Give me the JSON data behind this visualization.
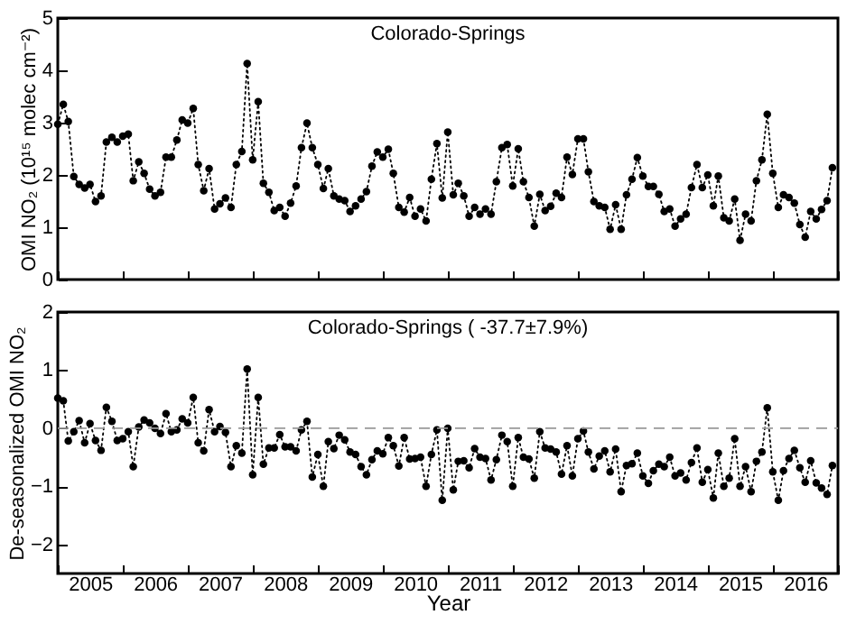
{
  "chart_data": [
    {
      "type": "line",
      "title": "Colorado-Springs",
      "ylabel": "OMI NO₂ (10¹⁵ molec cm⁻²)",
      "marker": "circle",
      "line_style": "dotted",
      "grid": false,
      "tick_labels": "y",
      "x": [
        "2005-01",
        "2005-02",
        "2005-03",
        "2005-04",
        "2005-05",
        "2005-06",
        "2005-07",
        "2005-08",
        "2005-09",
        "2005-10",
        "2005-11",
        "2005-12",
        "2006-01",
        "2006-02",
        "2006-03",
        "2006-04",
        "2006-05",
        "2006-06",
        "2006-07",
        "2006-08",
        "2006-09",
        "2006-10",
        "2006-11",
        "2006-12",
        "2007-01",
        "2007-02",
        "2007-03",
        "2007-04",
        "2007-05",
        "2007-06",
        "2007-07",
        "2007-08",
        "2007-09",
        "2007-10",
        "2007-11",
        "2007-12",
        "2008-01",
        "2008-02",
        "2008-03",
        "2008-04",
        "2008-05",
        "2008-06",
        "2008-07",
        "2008-08",
        "2008-09",
        "2008-10",
        "2008-11",
        "2008-12",
        "2009-01",
        "2009-02",
        "2009-03",
        "2009-04",
        "2009-05",
        "2009-06",
        "2009-07",
        "2009-08",
        "2009-09",
        "2009-10",
        "2009-11",
        "2009-12",
        "2010-01",
        "2010-02",
        "2010-03",
        "2010-04",
        "2010-05",
        "2010-06",
        "2010-07",
        "2010-08",
        "2010-09",
        "2010-10",
        "2010-11",
        "2010-12",
        "2011-01",
        "2011-02",
        "2011-03",
        "2011-04",
        "2011-05",
        "2011-06",
        "2011-07",
        "2011-08",
        "2011-09",
        "2011-10",
        "2011-11",
        "2011-12",
        "2012-01",
        "2012-02",
        "2012-03",
        "2012-04",
        "2012-05",
        "2012-06",
        "2012-07",
        "2012-08",
        "2012-09",
        "2012-10",
        "2012-11",
        "2012-12",
        "2013-01",
        "2013-02",
        "2013-03",
        "2013-04",
        "2013-05",
        "2013-06",
        "2013-07",
        "2013-08",
        "2013-09",
        "2013-10",
        "2013-11",
        "2013-12",
        "2014-01",
        "2014-02",
        "2014-03",
        "2014-04",
        "2014-05",
        "2014-06",
        "2014-07",
        "2014-08",
        "2014-09",
        "2014-10",
        "2014-11",
        "2014-12",
        "2015-01",
        "2015-02",
        "2015-03",
        "2015-04",
        "2015-05",
        "2015-06",
        "2015-07",
        "2015-08",
        "2015-09",
        "2015-10",
        "2015-11",
        "2015-12",
        "2016-01",
        "2016-02",
        "2016-03",
        "2016-04",
        "2016-05",
        "2016-06",
        "2016-07",
        "2016-08",
        "2016-09",
        "2016-10",
        "2016-11",
        "2016-12"
      ],
      "series": [
        {
          "color": "#000000",
          "values": [
            2.97,
            3.35,
            3.02,
            1.97,
            1.82,
            1.75,
            1.82,
            1.49,
            1.6,
            2.63,
            2.72,
            2.63,
            2.74,
            2.78,
            1.89,
            2.25,
            2.03,
            1.73,
            1.6,
            1.67,
            2.34,
            2.34,
            2.67,
            3.05,
            2.99,
            3.27,
            2.2,
            1.7,
            2.12,
            1.35,
            1.45,
            1.56,
            1.38,
            2.2,
            2.45,
            4.13,
            2.29,
            3.4,
            1.84,
            1.67,
            1.32,
            1.38,
            1.21,
            1.46,
            1.79,
            2.52,
            2.99,
            2.52,
            2.2,
            1.74,
            2.12,
            1.6,
            1.54,
            1.51,
            1.3,
            1.41,
            1.54,
            1.68,
            2.17,
            2.44,
            2.34,
            2.49,
            2.03,
            1.38,
            1.29,
            1.57,
            1.21,
            1.35,
            1.12,
            1.92,
            2.6,
            1.56,
            2.82,
            1.62,
            1.84,
            1.6,
            1.21,
            1.38,
            1.25,
            1.35,
            1.25,
            1.87,
            2.52,
            2.58,
            1.79,
            2.5,
            1.87,
            1.57,
            1.02,
            1.63,
            1.32,
            1.4,
            1.65,
            1.57,
            2.34,
            2.01,
            2.69,
            2.69,
            2.06,
            1.49,
            1.41,
            1.38,
            0.96,
            1.43,
            0.96,
            1.62,
            1.92,
            2.33,
            1.98,
            1.78,
            1.78,
            1.63,
            1.3,
            1.35,
            1.02,
            1.16,
            1.25,
            1.76,
            2.2,
            1.76,
            2.0,
            1.41,
            1.98,
            1.18,
            1.12,
            1.54,
            0.75,
            1.25,
            1.12,
            1.89,
            2.29,
            3.16,
            2.03,
            1.38,
            1.62,
            1.57,
            1.46,
            1.05,
            0.81,
            1.3,
            1.16,
            1.34,
            1.51,
            2.14
          ]
        }
      ],
      "xlim": [
        "2005-01",
        "2017-01"
      ],
      "xticks": [
        {
          "value": "2005-01",
          "label": null
        },
        {
          "value": "2006-01",
          "label": null
        },
        {
          "value": "2007-01",
          "label": null
        },
        {
          "value": "2008-01",
          "label": null
        },
        {
          "value": "2009-01",
          "label": null
        },
        {
          "value": "2010-01",
          "label": null
        },
        {
          "value": "2011-01",
          "label": null
        },
        {
          "value": "2012-01",
          "label": null
        },
        {
          "value": "2013-01",
          "label": null
        },
        {
          "value": "2014-01",
          "label": null
        },
        {
          "value": "2015-01",
          "label": null
        },
        {
          "value": "2016-01",
          "label": null
        },
        {
          "value": "2017-01",
          "label": null
        }
      ],
      "ylim": [
        0,
        5
      ],
      "yticks": [
        0,
        1,
        2,
        3,
        4,
        5
      ]
    },
    {
      "type": "line",
      "title": "Colorado-Springs ( -37.7±7.9%)",
      "xlabel": "Year",
      "ylabel": "De-seasonalized OMI NO₂",
      "marker": "circle",
      "line_style": "dotted",
      "grid": false,
      "x": [
        "2005-01",
        "2005-02",
        "2005-03",
        "2005-04",
        "2005-05",
        "2005-06",
        "2005-07",
        "2005-08",
        "2005-09",
        "2005-10",
        "2005-11",
        "2005-12",
        "2006-01",
        "2006-02",
        "2006-03",
        "2006-04",
        "2006-05",
        "2006-06",
        "2006-07",
        "2006-08",
        "2006-09",
        "2006-10",
        "2006-11",
        "2006-12",
        "2007-01",
        "2007-02",
        "2007-03",
        "2007-04",
        "2007-05",
        "2007-06",
        "2007-07",
        "2007-08",
        "2007-09",
        "2007-10",
        "2007-11",
        "2007-12",
        "2008-01",
        "2008-02",
        "2008-03",
        "2008-04",
        "2008-05",
        "2008-06",
        "2008-07",
        "2008-08",
        "2008-09",
        "2008-10",
        "2008-11",
        "2008-12",
        "2009-01",
        "2009-02",
        "2009-03",
        "2009-04",
        "2009-05",
        "2009-06",
        "2009-07",
        "2009-08",
        "2009-09",
        "2009-10",
        "2009-11",
        "2009-12",
        "2010-01",
        "2010-02",
        "2010-03",
        "2010-04",
        "2010-05",
        "2010-06",
        "2010-07",
        "2010-08",
        "2010-09",
        "2010-10",
        "2010-11",
        "2010-12",
        "2011-01",
        "2011-02",
        "2011-03",
        "2011-04",
        "2011-05",
        "2011-06",
        "2011-07",
        "2011-08",
        "2011-09",
        "2011-10",
        "2011-11",
        "2011-12",
        "2012-01",
        "2012-02",
        "2012-03",
        "2012-04",
        "2012-05",
        "2012-06",
        "2012-07",
        "2012-08",
        "2012-09",
        "2012-10",
        "2012-11",
        "2012-12",
        "2013-01",
        "2013-02",
        "2013-03",
        "2013-04",
        "2013-05",
        "2013-06",
        "2013-07",
        "2013-08",
        "2013-09",
        "2013-10",
        "2013-11",
        "2013-12",
        "2014-01",
        "2014-02",
        "2014-03",
        "2014-04",
        "2014-05",
        "2014-06",
        "2014-07",
        "2014-08",
        "2014-09",
        "2014-10",
        "2014-11",
        "2014-12",
        "2015-01",
        "2015-02",
        "2015-03",
        "2015-04",
        "2015-05",
        "2015-06",
        "2015-07",
        "2015-08",
        "2015-09",
        "2015-10",
        "2015-11",
        "2015-12",
        "2016-01",
        "2016-02",
        "2016-03",
        "2016-04",
        "2016-05",
        "2016-06",
        "2016-07",
        "2016-08",
        "2016-09",
        "2016-10",
        "2016-11",
        "2016-12"
      ],
      "series": [
        {
          "color": "#000000",
          "values": [
            0.52,
            0.47,
            -0.22,
            -0.06,
            0.13,
            -0.25,
            0.08,
            -0.21,
            -0.38,
            0.36,
            0.12,
            -0.21,
            -0.18,
            -0.06,
            -0.66,
            0.02,
            0.14,
            0.09,
            0,
            -0.09,
            0.25,
            -0.06,
            -0.03,
            0.16,
            0.09,
            0.53,
            -0.25,
            -0.39,
            0.32,
            -0.06,
            0.03,
            -0.07,
            -0.66,
            -0.3,
            -0.43,
            1.02,
            -0.8,
            0.53,
            -0.62,
            -0.34,
            -0.34,
            -0.11,
            -0.32,
            -0.32,
            -0.39,
            -0.03,
            0.12,
            -0.84,
            -0.45,
            -1.0,
            -0.23,
            -0.35,
            -0.12,
            -0.2,
            -0.41,
            -0.45,
            -0.66,
            -0.8,
            -0.54,
            -0.39,
            -0.44,
            -0.16,
            -0.3,
            -0.65,
            -0.16,
            -0.53,
            -0.52,
            -0.5,
            -1.0,
            -0.45,
            -0.03,
            -1.24,
            0,
            -1.06,
            -0.57,
            -0.56,
            -0.68,
            -0.35,
            -0.5,
            -0.52,
            -0.89,
            -0.54,
            -0.12,
            -0.23,
            -1.0,
            -0.16,
            -0.5,
            -0.53,
            -0.86,
            -0.06,
            -0.34,
            -0.36,
            -0.41,
            -0.79,
            -0.3,
            -0.82,
            -0.18,
            -0.05,
            -0.41,
            -0.7,
            -0.48,
            -0.39,
            -0.75,
            -0.36,
            -1.09,
            -0.64,
            -0.61,
            -0.43,
            -0.82,
            -0.95,
            -0.73,
            -0.62,
            -0.66,
            -0.5,
            -0.82,
            -0.77,
            -0.89,
            -0.59,
            -0.34,
            -0.93,
            -0.71,
            -1.2,
            -0.43,
            -1.0,
            -0.86,
            -0.18,
            -1.0,
            -0.66,
            -1.09,
            -0.57,
            -0.41,
            0.35,
            -0.75,
            -1.24,
            -0.73,
            -0.52,
            -0.38,
            -0.68,
            -0.93,
            -0.56,
            -0.94,
            -1.03,
            -1.14,
            -0.64
          ]
        }
      ],
      "xlim": [
        "2005-01",
        "2017-01"
      ],
      "xticks": [
        {
          "value": "2005-01",
          "label": null
        },
        {
          "value": "2005-07",
          "label": "2005"
        },
        {
          "value": "2006-01",
          "label": null
        },
        {
          "value": "2006-07",
          "label": "2006"
        },
        {
          "value": "2007-01",
          "label": null
        },
        {
          "value": "2007-07",
          "label": "2007"
        },
        {
          "value": "2008-01",
          "label": null
        },
        {
          "value": "2008-07",
          "label": "2008"
        },
        {
          "value": "2009-01",
          "label": null
        },
        {
          "value": "2009-07",
          "label": "2009"
        },
        {
          "value": "2010-01",
          "label": null
        },
        {
          "value": "2010-07",
          "label": "2010"
        },
        {
          "value": "2011-01",
          "label": null
        },
        {
          "value": "2011-07",
          "label": "2011"
        },
        {
          "value": "2012-01",
          "label": null
        },
        {
          "value": "2012-07",
          "label": "2012"
        },
        {
          "value": "2013-01",
          "label": null
        },
        {
          "value": "2013-07",
          "label": "2013"
        },
        {
          "value": "2014-01",
          "label": null
        },
        {
          "value": "2014-07",
          "label": "2014"
        },
        {
          "value": "2015-01",
          "label": null
        },
        {
          "value": "2015-07",
          "label": "2015"
        },
        {
          "value": "2016-01",
          "label": null
        },
        {
          "value": "2016-07",
          "label": "2016"
        },
        {
          "value": "2017-01",
          "label": null
        }
      ],
      "ylim": [
        -2.5,
        2
      ],
      "yticks": [
        -2,
        -1,
        0,
        1,
        2
      ],
      "ref_lines": [
        {
          "axis": "y",
          "value": 0,
          "color": "#999999",
          "line_style": "dashed"
        }
      ]
    }
  ]
}
